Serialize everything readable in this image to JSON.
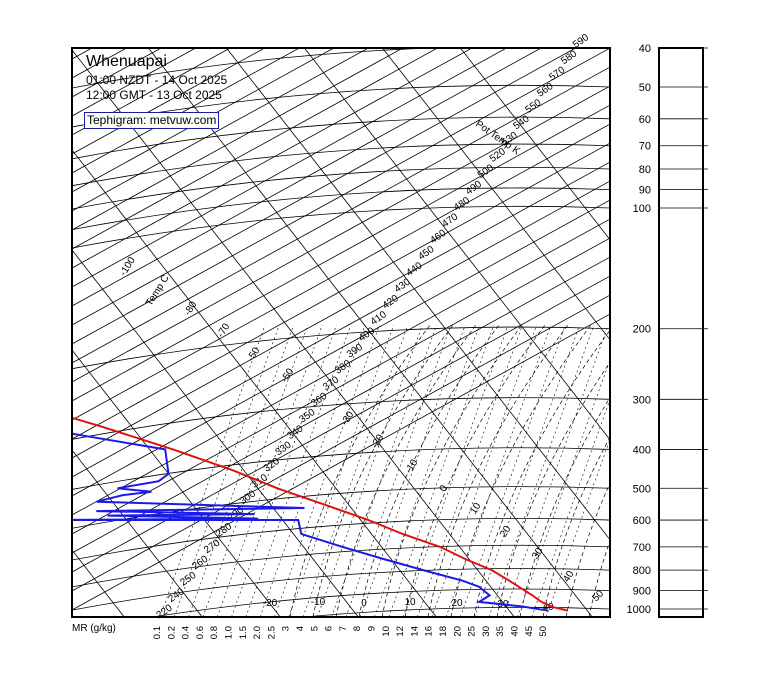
{
  "header": {
    "station": "Whenuapai",
    "time_local": "01:00 NZDT - 14 Oct 2025",
    "time_utc": "12:00 GMT - 13 Oct 2025",
    "credit": "Tephigram: metvuw.com"
  },
  "chart_data": {
    "type": "line",
    "pressure_axis": {
      "ticks": [
        "40",
        "50",
        "60",
        "70",
        "80",
        "90",
        "100",
        "200",
        "300",
        "400",
        "500",
        "600",
        "700",
        "800",
        "900",
        "1000"
      ]
    },
    "mixing_ratio": {
      "title": "MR (g/kg)",
      "ticks": [
        "0.1",
        "0.2",
        "0.4",
        "0.6",
        "0.8",
        "1.0",
        "1.5",
        "2.0",
        "2.5",
        "3",
        "4",
        "5",
        "6",
        "7",
        "8",
        "9",
        "10",
        "12",
        "14",
        "16",
        "18",
        "20",
        "25",
        "30",
        "35",
        "40",
        "45",
        "50"
      ]
    },
    "isotherm_label": "Temp C",
    "isotherm_ticks_upper": [
      "-100",
      "-80",
      "-70",
      "-50",
      "-50"
    ],
    "isotherm_ticks_lower": [
      "-20",
      "-10",
      "0",
      "10",
      "20",
      "30",
      "40",
      "50"
    ],
    "isotherm_ticks_inner": [
      "-30",
      "-20",
      "-10",
      "0",
      "10",
      "20",
      "30",
      "40"
    ],
    "isentrope_label": "Pot Temp K",
    "isentrope_ticks": [
      "220",
      "240",
      "250",
      "260",
      "270",
      "280",
      "290",
      "300",
      "310",
      "320",
      "330",
      "340",
      "350",
      "360",
      "370",
      "380",
      "390",
      "400",
      "410",
      "420",
      "430",
      "440",
      "450",
      "460",
      "470",
      "480",
      "490",
      "500",
      "520",
      "530",
      "540",
      "550",
      "560",
      "570",
      "580",
      "590"
    ],
    "series": [
      {
        "color": "#e01010",
        "points": [
          [
            1010,
            17.5
          ],
          [
            990,
            16.0
          ],
          [
            960,
            15.0
          ],
          [
            925,
            14.5
          ],
          [
            900,
            14.0
          ],
          [
            850,
            13.0
          ],
          [
            800,
            11.8
          ],
          [
            750,
            9.5
          ],
          [
            700,
            7.5
          ],
          [
            650,
            4.0
          ],
          [
            600,
            1.0
          ],
          [
            550,
            -3.0
          ],
          [
            500,
            -7.5
          ],
          [
            450,
            -11.5
          ],
          [
            400,
            -17.0
          ],
          [
            350,
            -24.0
          ],
          [
            300,
            -33.0
          ],
          [
            250,
            -43.0
          ]
        ]
      },
      {
        "color": "#1a1ae6",
        "points": [
          [
            1010,
            15.0
          ],
          [
            985,
            12.0
          ],
          [
            960,
            7.0
          ],
          [
            925,
            9.0
          ],
          [
            880,
            8.5
          ],
          [
            850,
            7.0
          ],
          [
            800,
            3.0
          ],
          [
            750,
            -1.0
          ],
          [
            700,
            -5.0
          ],
          [
            650,
            -9.0
          ],
          [
            600,
            -8.0
          ],
          [
            600,
            -40.0
          ],
          [
            595,
            -13.0
          ],
          [
            585,
            -32.0
          ],
          [
            580,
            -13.0
          ],
          [
            570,
            -33.0
          ],
          [
            560,
            -6.0
          ],
          [
            540,
            -32.0
          ],
          [
            520,
            -28.0
          ],
          [
            510,
            -24.0
          ],
          [
            500,
            -28.0
          ],
          [
            480,
            -22.0
          ],
          [
            460,
            -20.0
          ],
          [
            400,
            -18.0
          ],
          [
            370,
            -27.0
          ],
          [
            350,
            -33.0
          ],
          [
            320,
            -37.0
          ],
          [
            300,
            -38.0
          ],
          [
            300,
            -56.0
          ],
          [
            290,
            -58.0
          ],
          [
            270,
            -67.0
          ]
        ]
      }
    ]
  }
}
